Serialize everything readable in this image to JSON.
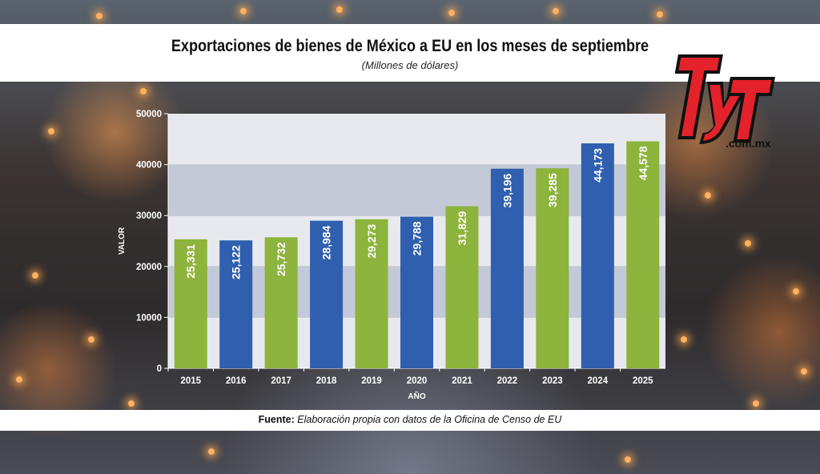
{
  "header": {
    "title": "Exportaciones de bienes de México a EU en los meses de septiembre",
    "subtitle": "(Millones de dólares)"
  },
  "footer": {
    "source_label": "Fuente:",
    "source_text": "Elaboración propia con datos de la Oficina de Censo de EU"
  },
  "logo": {
    "brand": "TyT",
    "domain": ".com.mx",
    "colors": {
      "red": "#e3222b",
      "black": "#111111",
      "white": "#ffffff"
    }
  },
  "chart_data": {
    "type": "bar",
    "title": "Exportaciones de bienes de México a EU en los meses de septiembre",
    "subtitle": "(Millones de dólares)",
    "xlabel": "AÑO",
    "ylabel": "VALOR",
    "categories": [
      "2015",
      "2016",
      "2017",
      "2018",
      "2019",
      "2020",
      "2021",
      "2022",
      "2023",
      "2024",
      "2025"
    ],
    "values": [
      25331,
      25122,
      25732,
      28984,
      29273,
      29788,
      31829,
      39196,
      39285,
      44173,
      44578
    ],
    "data_labels": [
      "25,331",
      "25,122",
      "25,732",
      "28,984",
      "29,273",
      "29,788",
      "31,829",
      "39,196",
      "39,285",
      "44,173",
      "44,578"
    ],
    "bar_colors": [
      "#8db43c",
      "#2f5fae",
      "#8db43c",
      "#2f5fae",
      "#8db43c",
      "#2f5fae",
      "#8db43c",
      "#2f5fae",
      "#8db43c",
      "#2f5fae",
      "#8db43c"
    ],
    "ylim": [
      0,
      50000
    ],
    "yticks": [
      0,
      10000,
      20000,
      30000,
      40000,
      50000
    ],
    "ytick_labels": [
      "0",
      "10000",
      "20000",
      "30000",
      "40000",
      "50000"
    ],
    "band_colors": [
      "#e7e9ef",
      "#c4c9d7"
    ]
  }
}
